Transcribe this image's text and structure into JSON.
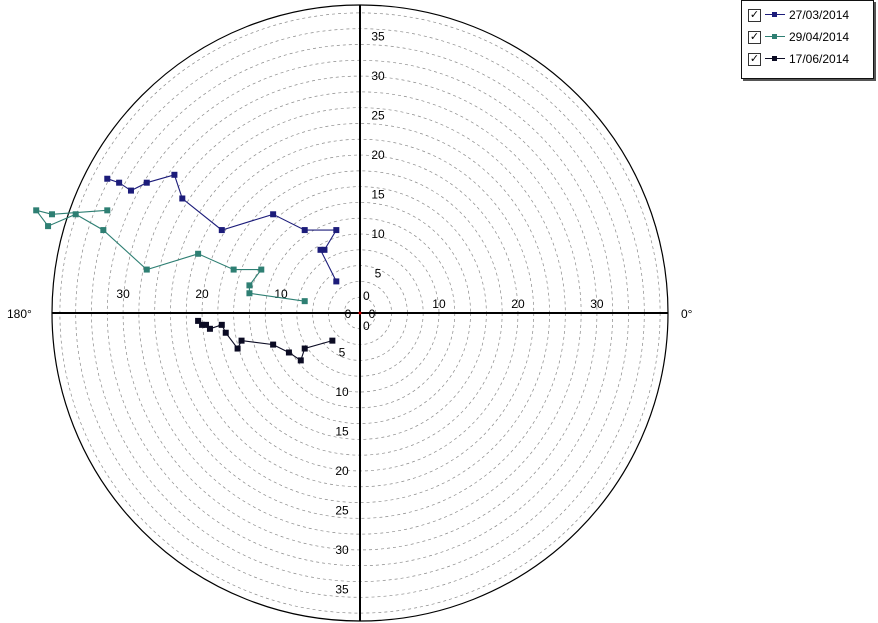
{
  "chart_data": {
    "type": "polar-scatter",
    "radial_ticks": [
      "5",
      "10",
      "15",
      "20",
      "25",
      "30",
      "35"
    ],
    "horizontal_tick_labels": {
      "right": [
        "10",
        "20",
        "30"
      ],
      "left": [
        "10",
        "20",
        "30"
      ]
    },
    "center_labels": [
      "0",
      "0",
      "0",
      "0"
    ],
    "angle_labels": {
      "right": "0°",
      "left": "180°"
    },
    "rmax": 39,
    "grid": true,
    "legend_position": "top-right",
    "series": [
      {
        "name": "27/03/2014",
        "color": "#1c1c7a",
        "points": [
          [
            -3,
            4
          ],
          [
            -5,
            8
          ],
          [
            -4.5,
            8
          ],
          [
            -3,
            10.5
          ],
          [
            -7,
            10.5
          ],
          [
            -11,
            12.5
          ],
          [
            -17.5,
            10.5
          ],
          [
            -22.5,
            14.5
          ],
          [
            -23.5,
            17.5
          ],
          [
            -27,
            16.5
          ],
          [
            -29,
            15.5
          ],
          [
            -30.5,
            16.5
          ],
          [
            -32,
            17
          ]
        ]
      },
      {
        "name": "29/04/2014",
        "color": "#2e7f73",
        "points": [
          [
            -7,
            1.5
          ],
          [
            -14,
            2.5
          ],
          [
            -14,
            3.5
          ],
          [
            -12.5,
            5.5
          ],
          [
            -16,
            5.5
          ],
          [
            -20.5,
            7.5
          ],
          [
            -27,
            5.5
          ],
          [
            -32.5,
            10.5
          ],
          [
            -36,
            12.5
          ],
          [
            -39.5,
            11
          ],
          [
            -41,
            13
          ],
          [
            -39,
            12.5
          ],
          [
            -32,
            13
          ]
        ]
      },
      {
        "name": "17/06/2014",
        "color": "#0b0b23",
        "points": [
          [
            -3.5,
            -3.5
          ],
          [
            -7,
            -4.5
          ],
          [
            -7.5,
            -6
          ],
          [
            -9,
            -5
          ],
          [
            -11,
            -4
          ],
          [
            -15,
            -3.5
          ],
          [
            -15.5,
            -4.5
          ],
          [
            -17,
            -2.5
          ],
          [
            -17.5,
            -1.5
          ],
          [
            -19,
            -2
          ],
          [
            -20,
            -1.5
          ],
          [
            -19.5,
            -1.5
          ],
          [
            -20.5,
            -1
          ]
        ]
      }
    ]
  }
}
